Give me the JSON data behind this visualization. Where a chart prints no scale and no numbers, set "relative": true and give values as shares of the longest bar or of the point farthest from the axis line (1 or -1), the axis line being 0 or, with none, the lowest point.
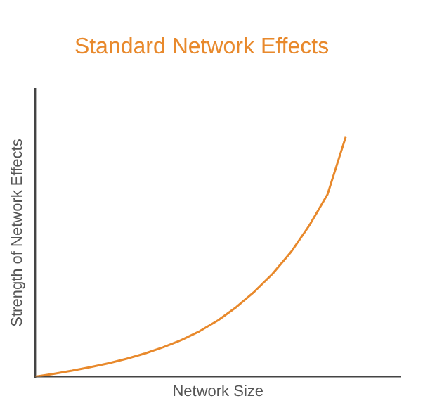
{
  "chart_data": {
    "type": "line",
    "title": "Standard Network Effects",
    "xlabel": "Network Size",
    "ylabel": "Strength of Network Effects",
    "relative": true,
    "color": "#e8892c",
    "categories": [
      null,
      null,
      null,
      null,
      null,
      null,
      null,
      null,
      null,
      null,
      null,
      null,
      null,
      null,
      null,
      null,
      null,
      null,
      null,
      null,
      null
    ],
    "values": [
      0,
      0.012,
      0.025,
      0.04,
      0.056,
      0.075,
      0.097,
      0.123,
      0.153,
      0.19,
      0.235,
      0.29,
      0.355,
      0.43,
      0.52,
      0.63,
      0.76,
      1,
      null,
      null,
      null
    ]
  }
}
